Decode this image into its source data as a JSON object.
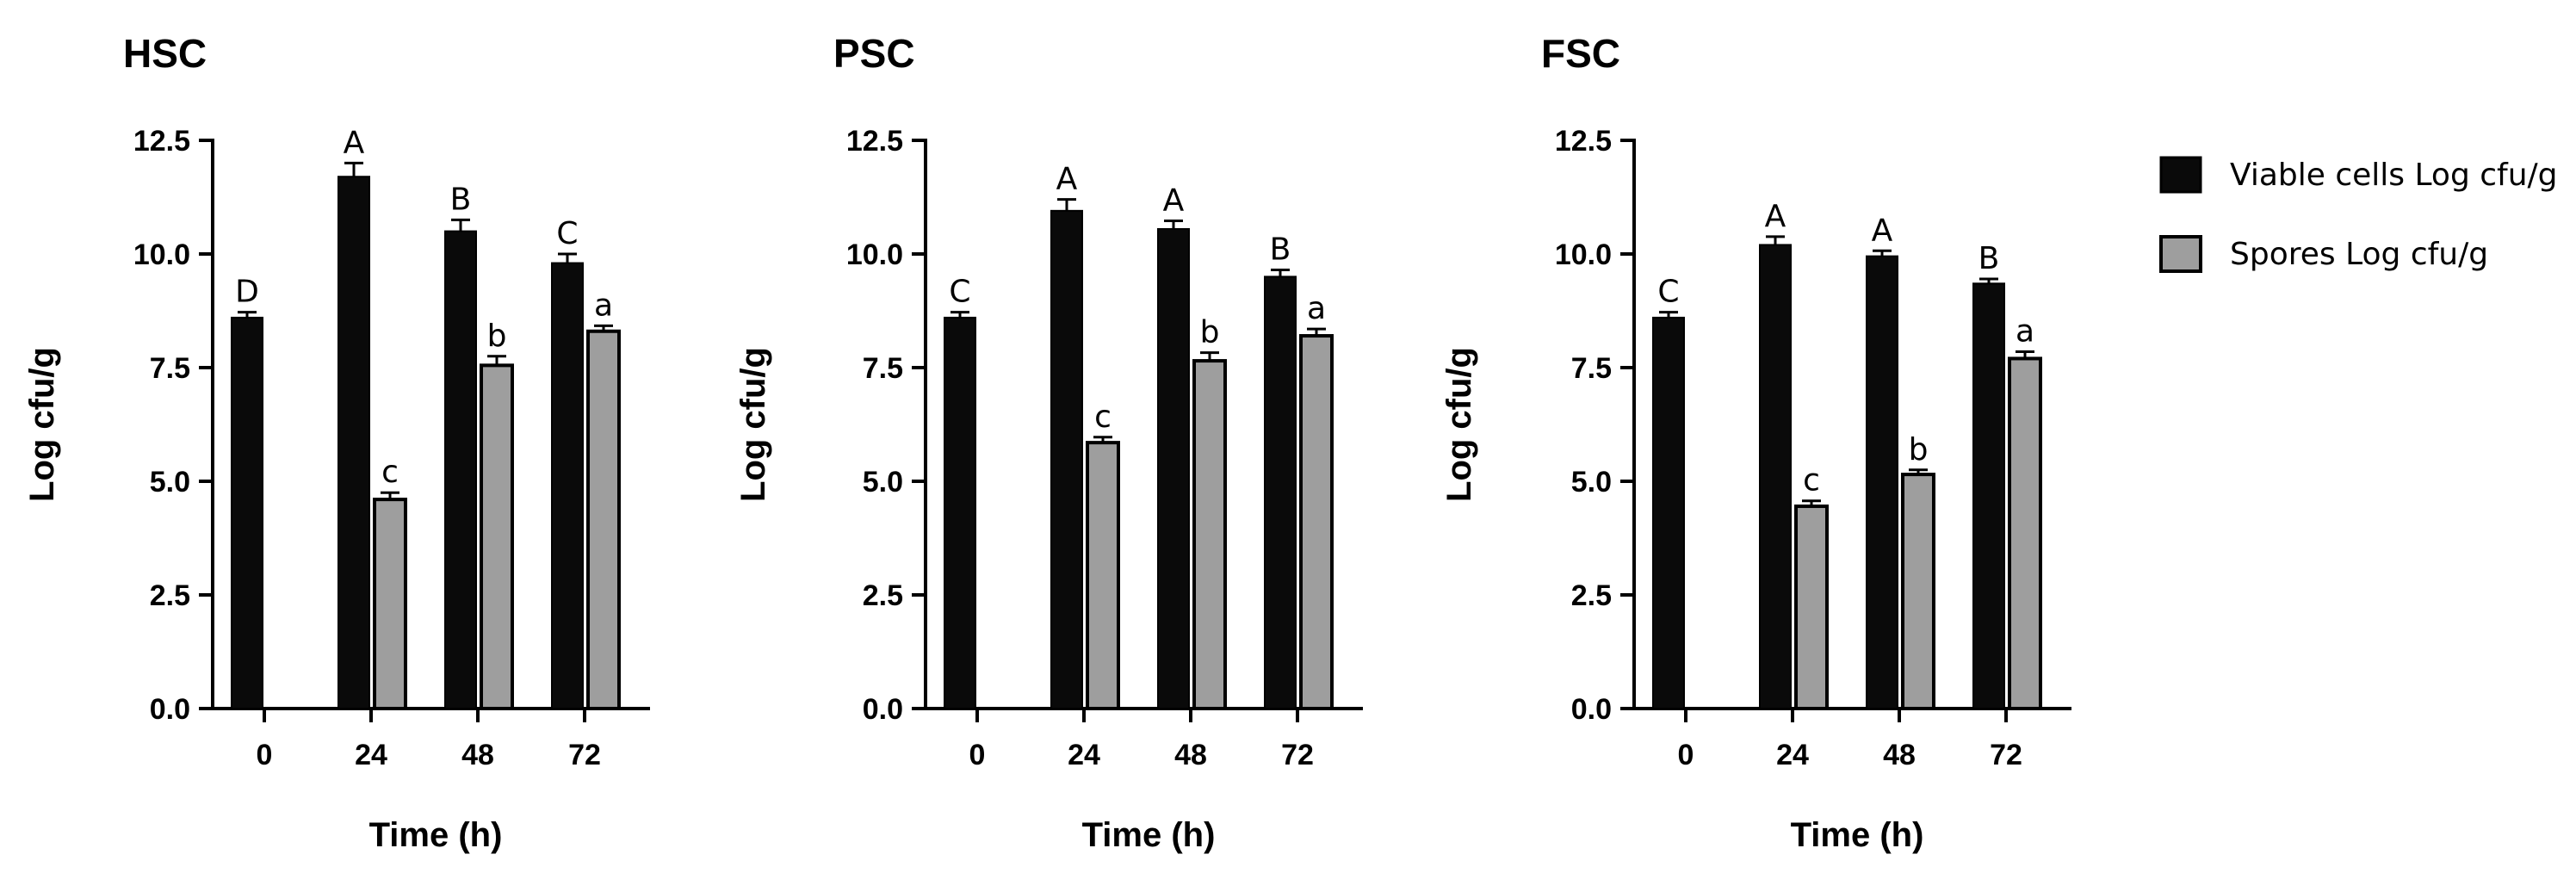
{
  "chart_data": [
    {
      "type": "bar",
      "title": "HSC",
      "xlabel": "Time (h)",
      "ylabel": "Log cfu/g",
      "ylim": [
        0,
        12.5
      ],
      "yticks": [
        "0.0",
        "2.5",
        "5.0",
        "7.5",
        "10.0",
        "12.5"
      ],
      "categories": [
        "0",
        "24",
        "48",
        "72"
      ],
      "series": [
        {
          "name": "Viable cells Log cfu/g",
          "values": [
            8.6,
            11.7,
            10.5,
            9.8
          ],
          "errors": [
            0.12,
            0.3,
            0.25,
            0.2
          ],
          "letters": [
            "D",
            "A",
            "B",
            "C"
          ]
        },
        {
          "name": "Spores Log cfu/g",
          "values": [
            null,
            4.6,
            7.55,
            8.3
          ],
          "errors": [
            null,
            0.15,
            0.2,
            0.12
          ],
          "letters": [
            "",
            "c",
            "b",
            "a"
          ]
        }
      ]
    },
    {
      "type": "bar",
      "title": "PSC",
      "xlabel": "Time (h)",
      "ylabel": "Log cfu/g",
      "ylim": [
        0,
        12.5
      ],
      "yticks": [
        "0.0",
        "2.5",
        "5.0",
        "7.5",
        "10.0",
        "12.5"
      ],
      "categories": [
        "0",
        "24",
        "48",
        "72"
      ],
      "series": [
        {
          "name": "Viable cells Log cfu/g",
          "values": [
            8.6,
            10.95,
            10.55,
            9.5
          ],
          "errors": [
            0.12,
            0.25,
            0.18,
            0.15
          ],
          "letters": [
            "C",
            "A",
            "A",
            "B"
          ]
        },
        {
          "name": "Spores Log cfu/g",
          "values": [
            null,
            5.85,
            7.65,
            8.2
          ],
          "errors": [
            null,
            0.12,
            0.18,
            0.15
          ],
          "letters": [
            "",
            "c",
            "b",
            "a"
          ]
        }
      ]
    },
    {
      "type": "bar",
      "title": "FSC",
      "xlabel": "Time (h)",
      "ylabel": "Log cfu/g",
      "ylim": [
        0,
        12.5
      ],
      "yticks": [
        "0.0",
        "2.5",
        "5.0",
        "7.5",
        "10.0",
        "12.5"
      ],
      "categories": [
        "0",
        "24",
        "48",
        "72"
      ],
      "series": [
        {
          "name": "Viable cells Log cfu/g",
          "values": [
            8.6,
            10.2,
            9.95,
            9.35
          ],
          "errors": [
            0.12,
            0.18,
            0.12,
            0.1
          ],
          "letters": [
            "C",
            "A",
            "A",
            "B"
          ]
        },
        {
          "name": "Spores Log cfu/g",
          "values": [
            null,
            4.45,
            5.15,
            7.7
          ],
          "errors": [
            null,
            0.12,
            0.1,
            0.15
          ],
          "letters": [
            "",
            "c",
            "b",
            "a"
          ]
        }
      ]
    }
  ],
  "legend": {
    "items": [
      {
        "label": "Viable cells Log cfu/g",
        "color": "#0a0a0a"
      },
      {
        "label": "Spores Log cfu/g",
        "color": "#9e9e9e"
      }
    ]
  },
  "colors": {
    "viable": "#0a0a0a",
    "spores": "#9e9e9e",
    "axis": "#000000"
  }
}
